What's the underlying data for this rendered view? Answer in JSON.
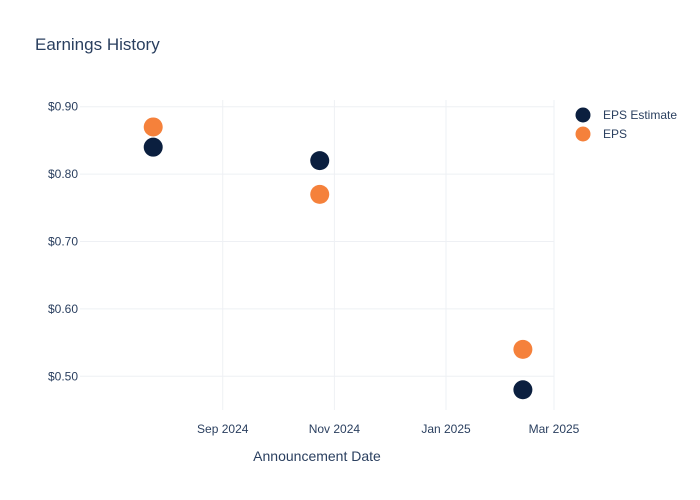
{
  "colors": {
    "estimate": "#0b1f3f",
    "actual": "#f5813b",
    "grid": "#eef0f4",
    "text": "#2a3f5f"
  },
  "chart_data": {
    "type": "scatter",
    "title": "Earnings History",
    "xlabel": "Announcement Date",
    "ylabel": "",
    "x_axis": {
      "type": "date",
      "range": [
        "2024-06-15",
        "2025-03-01"
      ],
      "tick_values": [
        "2024-09-01",
        "2024-11-01",
        "2025-01-01",
        "2025-03-01"
      ],
      "tick_labels": [
        "Sep 2024",
        "Nov 2024",
        "Jan 2025",
        "Mar 2025"
      ]
    },
    "y_axis": {
      "range": [
        0.45,
        0.91
      ],
      "tick_values": [
        0.5,
        0.6,
        0.7,
        0.8,
        0.9
      ],
      "tick_labels": [
        "$0.50",
        "$0.60",
        "$0.70",
        "$0.80",
        "$0.90"
      ]
    },
    "grid": true,
    "legend_position": "top-right",
    "series": [
      {
        "name": "EPS Estimate",
        "color": "#0b1f3f",
        "points": [
          {
            "x": "2024-07-25",
            "y": 0.84
          },
          {
            "x": "2024-10-24",
            "y": 0.82
          },
          {
            "x": "2025-02-12",
            "y": 0.48
          }
        ]
      },
      {
        "name": "EPS",
        "color": "#f5813b",
        "points": [
          {
            "x": "2024-07-25",
            "y": 0.87
          },
          {
            "x": "2024-10-24",
            "y": 0.77
          },
          {
            "x": "2025-02-12",
            "y": 0.54
          }
        ]
      }
    ]
  }
}
